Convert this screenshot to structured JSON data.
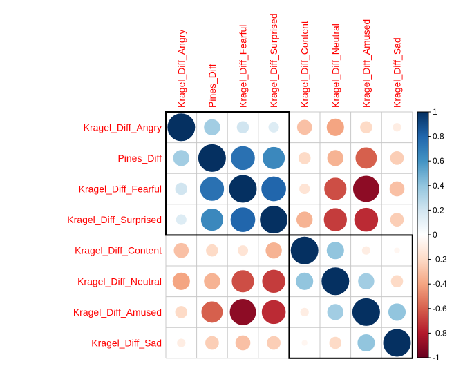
{
  "chart_data": {
    "type": "heatmap",
    "style": "corrplot-circle",
    "variables": [
      "Kragel_Diff_Angry",
      "Pines_Diff",
      "Kragel_Diff_Fearful",
      "Kragel_Diff_Surprised",
      "Kragel_Diff_Content",
      "Kragel_Diff_Neutral",
      "Kragel_Diff_Amused",
      "Kragel_Diff_Sad"
    ],
    "matrix": [
      [
        1.0,
        0.35,
        0.2,
        0.15,
        -0.3,
        -0.4,
        -0.2,
        -0.1
      ],
      [
        0.35,
        1.0,
        0.75,
        0.65,
        -0.2,
        -0.35,
        -0.6,
        -0.25
      ],
      [
        0.2,
        0.75,
        1.0,
        0.8,
        -0.15,
        -0.65,
        -0.9,
        -0.3
      ],
      [
        0.15,
        0.65,
        0.8,
        1.0,
        -0.35,
        -0.7,
        -0.75,
        -0.25
      ],
      [
        -0.3,
        -0.2,
        -0.15,
        -0.35,
        1.0,
        0.4,
        -0.1,
        -0.05
      ],
      [
        -0.4,
        -0.35,
        -0.65,
        -0.7,
        0.4,
        1.0,
        0.35,
        -0.2
      ],
      [
        -0.2,
        -0.6,
        -0.9,
        -0.75,
        -0.1,
        0.35,
        1.0,
        0.4
      ],
      [
        -0.1,
        -0.25,
        -0.3,
        -0.25,
        -0.05,
        -0.2,
        0.4,
        1.0
      ]
    ],
    "clusters": [
      [
        0,
        3
      ],
      [
        4,
        7
      ]
    ],
    "colorbar": {
      "range": [
        -1,
        1
      ],
      "ticks": [
        "1",
        "0.8",
        "0.6",
        "0.4",
        "0.2",
        "0",
        "-0.2",
        "-0.4",
        "-0.6",
        "-0.8",
        "-1"
      ]
    },
    "colors": {
      "negative_strong": "#67001f",
      "negative_mid": "#d6604d",
      "neutral": "#ffffff",
      "positive_mid": "#4393c3",
      "positive_strong": "#053061",
      "label": "#ff0000",
      "grid": "#c8c8c8",
      "cluster_box": "#000000"
    }
  }
}
